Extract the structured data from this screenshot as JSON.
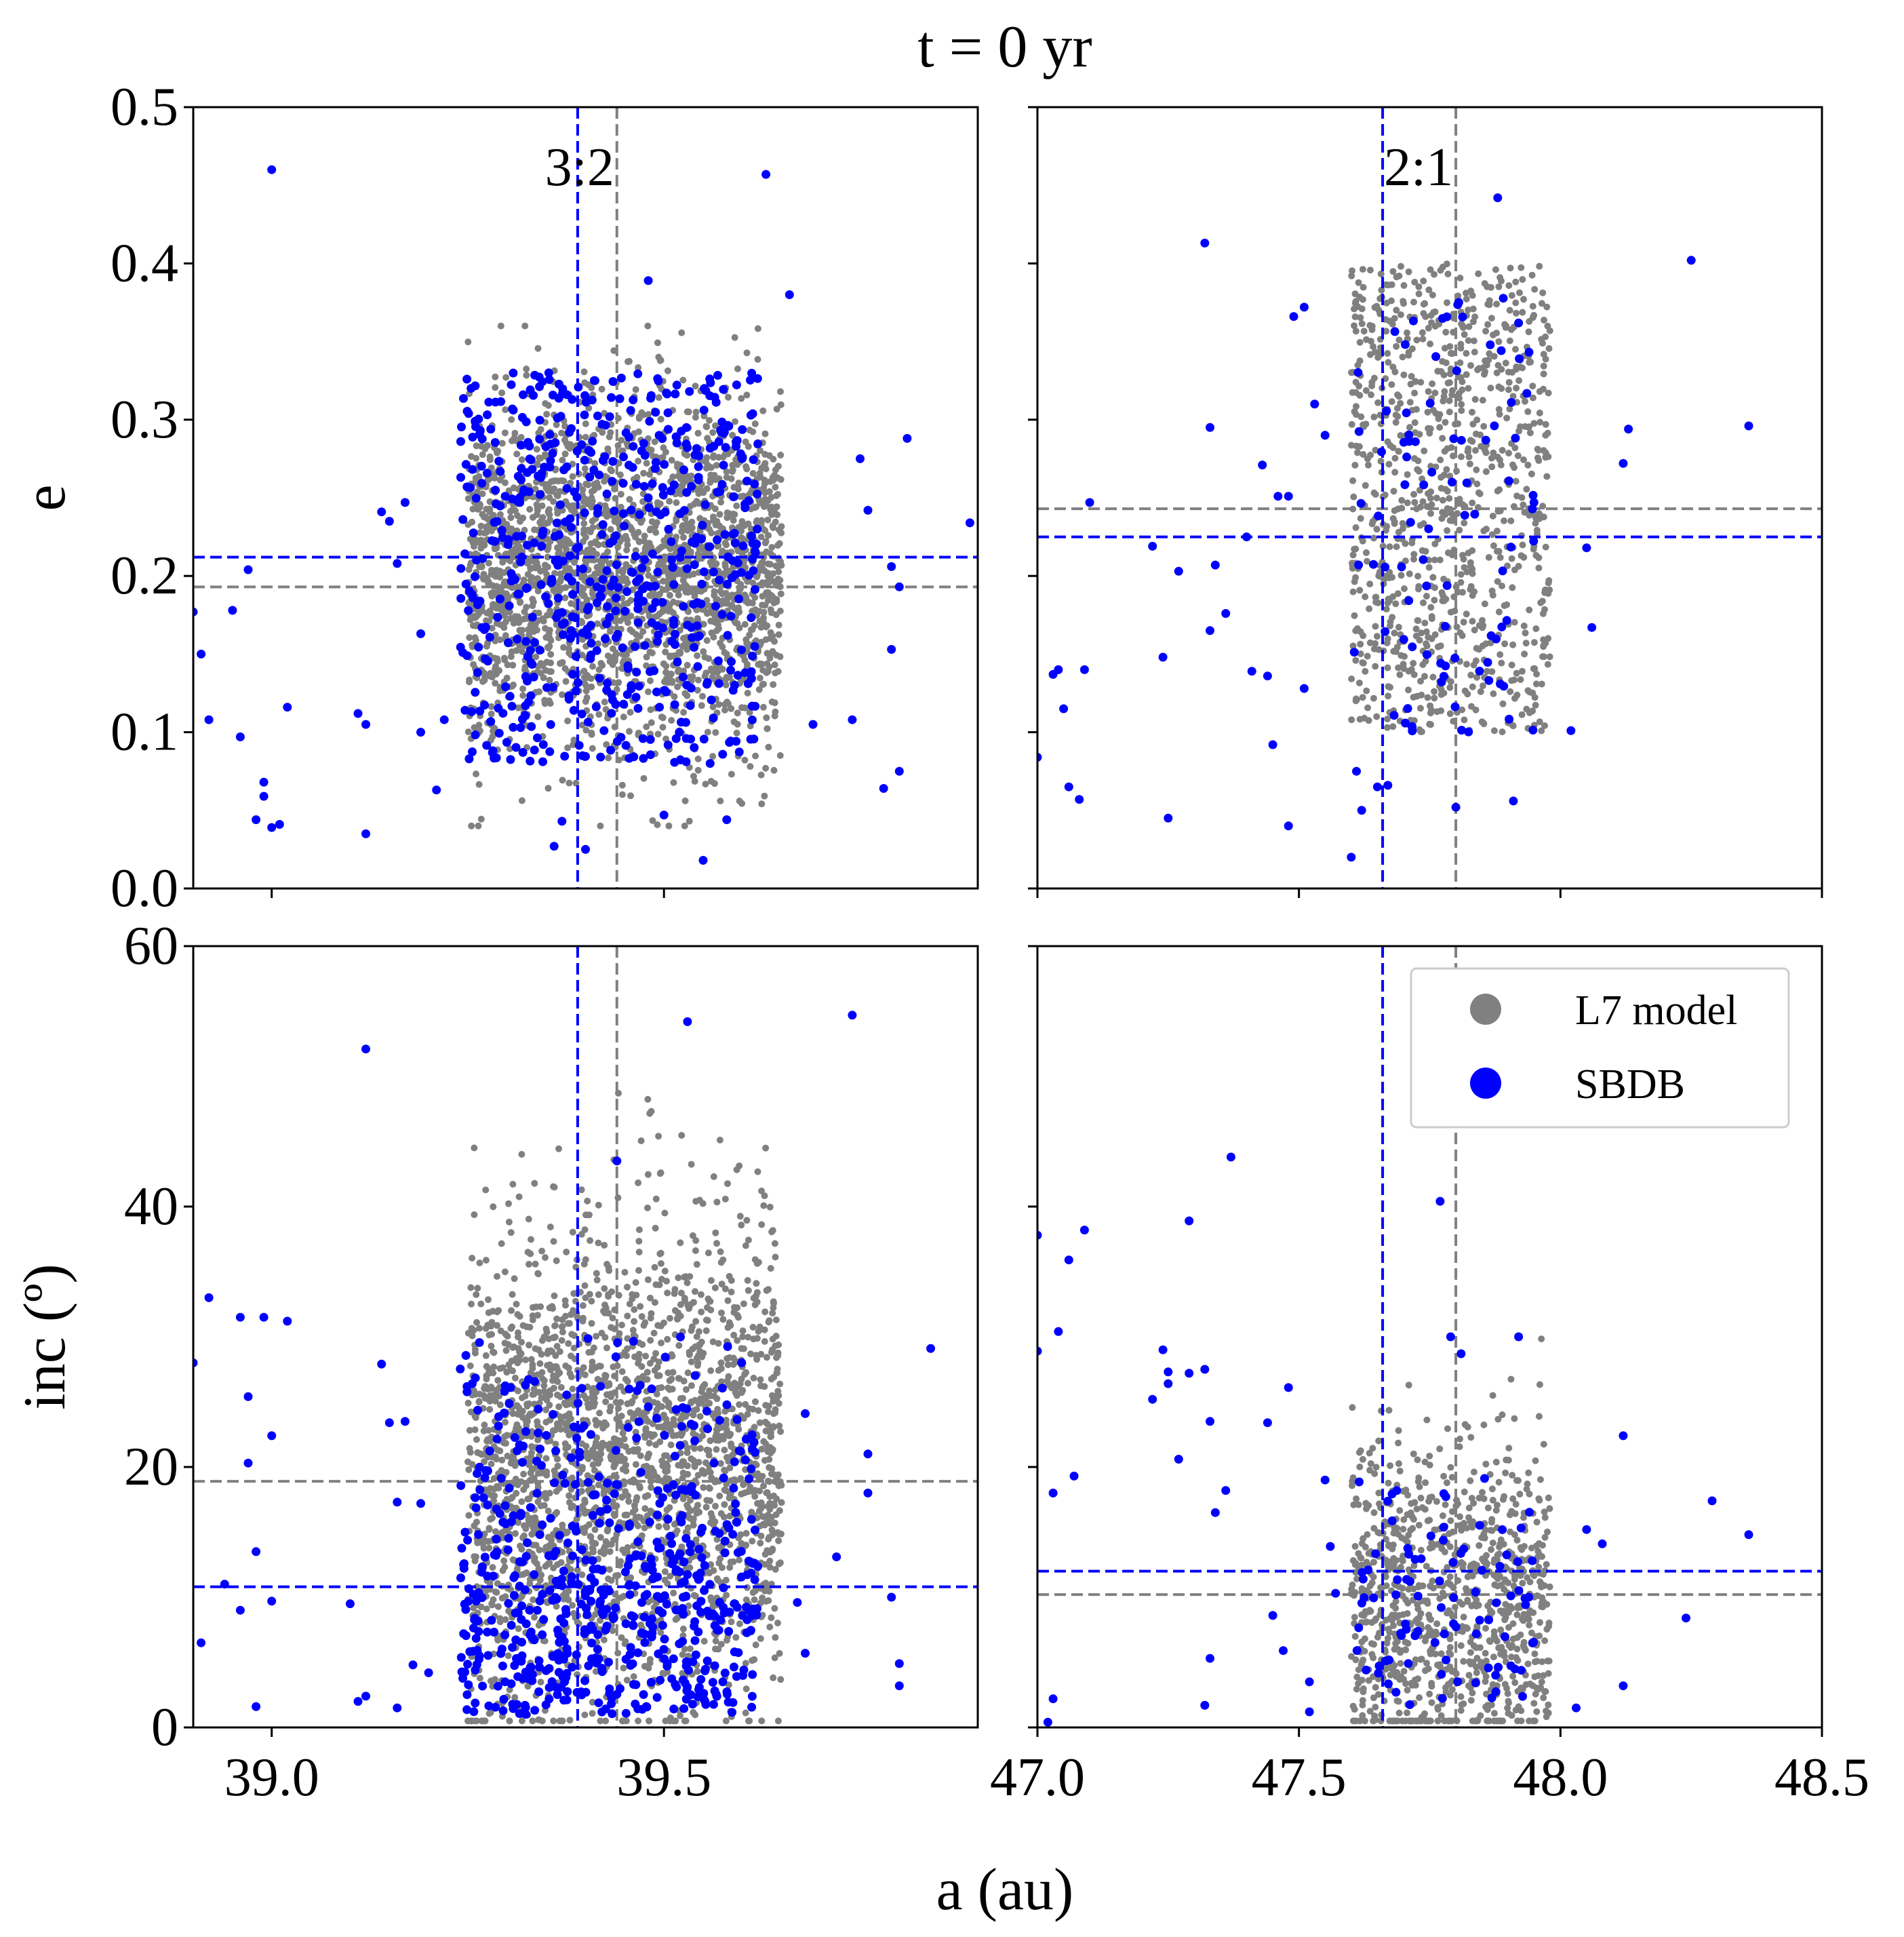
{
  "figure": {
    "suptitle": "t = 0 yr",
    "xlabel": "a (au)"
  },
  "legend": {
    "entries": [
      {
        "label": "L7 model",
        "color": "#808080"
      },
      {
        "label": "SBDB",
        "color": "#0000ff"
      }
    ],
    "placement": "upper-right of bottom-right panel"
  },
  "colors": {
    "model": "#808080",
    "sbdb": "#0000ff"
  },
  "chart_data": [
    {
      "type": "scatter",
      "panel": "top-left",
      "ylabel": "e",
      "xlim": [
        38.9,
        39.9
      ],
      "ylim": [
        0.0,
        0.5
      ],
      "xticks": [],
      "yticks": [
        "0.0",
        "0.1",
        "0.2",
        "0.3",
        "0.4",
        "0.5"
      ],
      "annotation": "3:2",
      "grid": false,
      "reference_lines": {
        "sbdb_vertical_a": 39.39,
        "model_vertical_a": 39.44,
        "sbdb_horizontal": 0.212,
        "model_horizontal": 0.193
      },
      "series": [
        {
          "name": "L7 model",
          "cloud": {
            "a_range": [
              39.25,
              39.65
            ],
            "e_center": 0.2,
            "e_spread": [
              0.04,
              0.36
            ],
            "approx_count": 2400
          }
        },
        {
          "name": "SBDB",
          "core": {
            "a_range": [
              39.24,
              39.62
            ],
            "e_range": [
              0.08,
              0.33
            ],
            "approx_count": 620
          },
          "outliers": [
            [
              39.0,
              0.46
            ],
            [
              39.63,
              0.457
            ],
            [
              39.48,
              0.389
            ],
            [
              39.66,
              0.38
            ],
            [
              39.81,
              0.288
            ],
            [
              39.89,
              0.234
            ],
            [
              39.75,
              0.275
            ],
            [
              39.76,
              0.242
            ],
            [
              39.79,
              0.206
            ],
            [
              39.8,
              0.193
            ],
            [
              39.79,
              0.153
            ],
            [
              39.74,
              0.108
            ],
            [
              39.78,
              0.064
            ],
            [
              39.8,
              0.075
            ],
            [
              39.69,
              0.105
            ],
            [
              39.58,
              0.044
            ],
            [
              39.55,
              0.018
            ],
            [
              38.9,
              0.177
            ],
            [
              38.91,
              0.15
            ],
            [
              38.92,
              0.108
            ],
            [
              38.95,
              0.178
            ],
            [
              38.96,
              0.097
            ],
            [
              38.97,
              0.204
            ],
            [
              38.98,
              0.044
            ],
            [
              38.99,
              0.068
            ],
            [
              38.99,
              0.059
            ],
            [
              39.0,
              0.039
            ],
            [
              39.01,
              0.041
            ],
            [
              39.02,
              0.116
            ],
            [
              39.11,
              0.112
            ],
            [
              39.12,
              0.105
            ],
            [
              39.12,
              0.035
            ],
            [
              39.14,
              0.241
            ],
            [
              39.15,
              0.235
            ],
            [
              39.16,
              0.208
            ],
            [
              39.17,
              0.247
            ],
            [
              39.19,
              0.163
            ],
            [
              39.19,
              0.1
            ],
            [
              39.21,
              0.063
            ],
            [
              39.22,
              0.108
            ],
            [
              39.36,
              0.027
            ],
            [
              39.37,
              0.043
            ],
            [
              39.4,
              0.025
            ],
            [
              39.5,
              0.047
            ]
          ]
        }
      ]
    },
    {
      "type": "scatter",
      "panel": "top-right",
      "ylabel": "",
      "xlim": [
        47.0,
        48.5
      ],
      "ylim": [
        0.0,
        0.5
      ],
      "xticks": [],
      "yticks": [],
      "annotation": "2:1",
      "grid": false,
      "reference_lines": {
        "sbdb_vertical_a": 47.66,
        "model_vertical_a": 47.8,
        "sbdb_horizontal": 0.225,
        "model_horizontal": 0.243
      },
      "series": [
        {
          "name": "L7 model",
          "cloud": {
            "a_range": [
              47.6,
              47.98
            ],
            "e_range": [
              0.1,
              0.4
            ],
            "approx_count": 950
          }
        },
        {
          "name": "SBDB",
          "core": {
            "a_range": [
              47.6,
              47.95
            ],
            "e_range": [
              0.1,
              0.38
            ],
            "approx_count": 90
          },
          "outliers": [
            [
              47.32,
              0.413
            ],
            [
              47.49,
              0.366
            ],
            [
              47.51,
              0.372
            ],
            [
              47.88,
              0.442
            ],
            [
              48.25,
              0.402
            ],
            [
              48.36,
              0.296
            ],
            [
              48.12,
              0.272
            ],
            [
              48.13,
              0.294
            ],
            [
              48.05,
              0.218
            ],
            [
              48.06,
              0.167
            ],
            [
              48.02,
              0.101
            ],
            [
              47.91,
              0.056
            ],
            [
              47.8,
              0.052
            ],
            [
              47.0,
              0.084
            ],
            [
              47.03,
              0.137
            ],
            [
              47.04,
              0.14
            ],
            [
              47.05,
              0.115
            ],
            [
              47.06,
              0.065
            ],
            [
              47.08,
              0.057
            ],
            [
              47.09,
              0.14
            ],
            [
              47.1,
              0.247
            ],
            [
              47.22,
              0.219
            ],
            [
              47.24,
              0.148
            ],
            [
              47.25,
              0.045
            ],
            [
              47.27,
              0.203
            ],
            [
              47.33,
              0.295
            ],
            [
              47.33,
              0.165
            ],
            [
              47.34,
              0.207
            ],
            [
              47.36,
              0.176
            ],
            [
              47.4,
              0.225
            ],
            [
              47.41,
              0.139
            ],
            [
              47.43,
              0.271
            ],
            [
              47.44,
              0.136
            ],
            [
              47.45,
              0.092
            ],
            [
              47.46,
              0.251
            ],
            [
              47.48,
              0.251
            ],
            [
              47.48,
              0.04
            ],
            [
              47.51,
              0.128
            ],
            [
              47.53,
              0.31
            ],
            [
              47.55,
              0.29
            ],
            [
              47.6,
              0.02
            ],
            [
              47.61,
              0.075
            ],
            [
              47.62,
              0.05
            ],
            [
              47.65,
              0.065
            ],
            [
              47.67,
              0.066
            ]
          ]
        }
      ]
    },
    {
      "type": "scatter",
      "panel": "bottom-left",
      "ylabel": "inc (º)",
      "xlim": [
        38.9,
        39.9
      ],
      "ylim": [
        0,
        60
      ],
      "xticks": [
        "39.0",
        "39.5"
      ],
      "yticks": [
        "0",
        "20",
        "40",
        "60"
      ],
      "grid": false,
      "reference_lines": {
        "sbdb_vertical_a": 39.39,
        "model_vertical_a": 39.44,
        "sbdb_horizontal": 10.8,
        "model_horizontal": 18.9
      },
      "series": [
        {
          "name": "L7 model",
          "cloud": {
            "a_range": [
              39.25,
              39.65
            ],
            "inc_range": [
              0.5,
              55
            ],
            "inc_center": 20,
            "approx_count": 2400
          }
        },
        {
          "name": "SBDB",
          "core": {
            "a_range": [
              39.24,
              39.62
            ],
            "inc_range": [
              1,
              30
            ],
            "approx_count": 620
          },
          "outliers": [
            [
              39.12,
              52.1
            ],
            [
              39.74,
              54.7
            ],
            [
              39.44,
              43.5
            ],
            [
              39.84,
              29.1
            ],
            [
              39.68,
              24.1
            ],
            [
              39.76,
              21.0
            ],
            [
              39.76,
              18.0
            ],
            [
              39.72,
              13.1
            ],
            [
              39.67,
              9.6
            ],
            [
              39.68,
              5.7
            ],
            [
              39.79,
              10.0
            ],
            [
              39.8,
              4.9
            ],
            [
              39.8,
              3.2
            ],
            [
              39.53,
              54.2
            ],
            [
              38.9,
              28.0
            ],
            [
              38.92,
              33.0
            ],
            [
              38.94,
              11.0
            ],
            [
              38.96,
              9.0
            ],
            [
              38.96,
              31.5
            ],
            [
              38.97,
              25.4
            ],
            [
              38.97,
              20.3
            ],
            [
              38.98,
              13.5
            ],
            [
              38.98,
              1.6
            ],
            [
              38.99,
              31.5
            ],
            [
              39.0,
              22.4
            ],
            [
              39.02,
              31.2
            ],
            [
              38.91,
              6.5
            ],
            [
              39.14,
              27.9
            ],
            [
              39.15,
              23.4
            ],
            [
              39.16,
              17.3
            ],
            [
              39.16,
              1.5
            ],
            [
              39.17,
              23.5
            ],
            [
              39.18,
              4.8
            ],
            [
              39.1,
              9.5
            ],
            [
              39.11,
              2.0
            ],
            [
              39.12,
              2.4
            ],
            [
              39.0,
              9.7
            ],
            [
              39.19,
              17.2
            ],
            [
              39.2,
              4.2
            ]
          ]
        }
      ]
    },
    {
      "type": "scatter",
      "panel": "bottom-right",
      "ylabel": "",
      "xlim": [
        47.0,
        48.5
      ],
      "ylim": [
        0,
        60
      ],
      "xticks": [
        "47.0",
        "47.5",
        "48.0",
        "48.5"
      ],
      "yticks": [],
      "grid": false,
      "reference_lines": {
        "sbdb_vertical_a": 47.66,
        "model_vertical_a": 47.8,
        "sbdb_horizontal": 12.0,
        "model_horizontal": 10.2
      },
      "series": [
        {
          "name": "L7 model",
          "cloud": {
            "a_range": [
              47.6,
              47.98
            ],
            "inc_range": [
              0.5,
              33
            ],
            "inc_center": 10,
            "approx_count": 950
          }
        },
        {
          "name": "SBDB",
          "core": {
            "a_range": [
              47.6,
              47.95
            ],
            "inc_range": [
              1,
              20
            ],
            "approx_count": 90
          },
          "outliers": [
            [
              47.37,
              43.8
            ],
            [
              47.77,
              40.4
            ],
            [
              47.79,
              30.0
            ],
            [
              47.81,
              28.7
            ],
            [
              47.92,
              30.0
            ],
            [
              47.0,
              37.8
            ],
            [
              47.0,
              28.9
            ],
            [
              47.03,
              18.0
            ],
            [
              47.04,
              30.4
            ],
            [
              47.06,
              35.9
            ],
            [
              47.07,
              19.3
            ],
            [
              47.09,
              38.2
            ],
            [
              47.03,
              2.2
            ],
            [
              47.02,
              0.4
            ],
            [
              47.22,
              25.2
            ],
            [
              47.24,
              29.0
            ],
            [
              47.25,
              27.3
            ],
            [
              47.25,
              26.4
            ],
            [
              47.27,
              20.6
            ],
            [
              47.29,
              27.2
            ],
            [
              47.29,
              38.9
            ],
            [
              47.32,
              27.5
            ],
            [
              47.33,
              23.5
            ],
            [
              47.34,
              16.5
            ],
            [
              47.36,
              18.2
            ],
            [
              47.33,
              5.3
            ],
            [
              47.32,
              1.7
            ],
            [
              47.44,
              23.4
            ],
            [
              47.45,
              8.6
            ],
            [
              47.47,
              5.9
            ],
            [
              47.48,
              26.1
            ],
            [
              47.52,
              1.2
            ],
            [
              47.52,
              3.5
            ],
            [
              47.55,
              19.0
            ],
            [
              47.56,
              13.9
            ],
            [
              47.57,
              10.3
            ],
            [
              48.05,
              15.2
            ],
            [
              48.08,
              14.1
            ],
            [
              48.12,
              22.4
            ],
            [
              48.12,
              3.2
            ],
            [
              48.24,
              8.4
            ],
            [
              48.29,
              17.4
            ],
            [
              48.36,
              14.8
            ],
            [
              48.03,
              1.5
            ]
          ]
        }
      ]
    }
  ]
}
